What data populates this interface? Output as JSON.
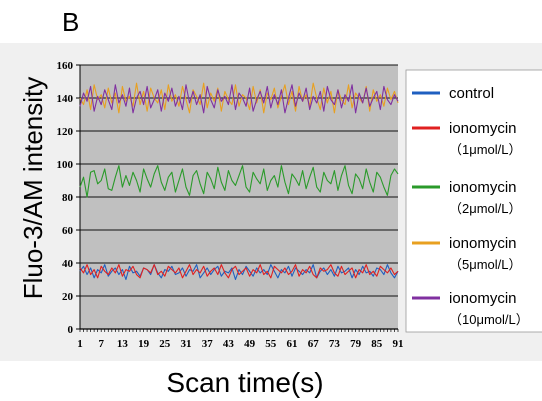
{
  "panel_label": "B",
  "chart_data": {
    "type": "line",
    "xlabel": "Scan time(s)",
    "ylabel": "Fluo-3/AM intensity",
    "x_ticks": [
      "1",
      "7",
      "13",
      "19",
      "25",
      "31",
      "37",
      "43",
      "49",
      "55",
      "61",
      "67",
      "73",
      "79",
      "85",
      "91"
    ],
    "x_range": [
      1,
      91
    ],
    "y_ticks": [
      "0",
      "20",
      "40",
      "60",
      "80",
      "100",
      "120",
      "140",
      "160"
    ],
    "ylim": [
      0,
      160
    ],
    "grid": "horizontal",
    "plot_background": "#c0c0c0",
    "legend_placement": "right",
    "legend": [
      {
        "line1": "control",
        "line2": "",
        "color": "#1f5fc0"
      },
      {
        "line1": "ionomycin",
        "line2": "（1μmol/L）",
        "color": "#e02020"
      },
      {
        "line1": "ionomycin",
        "line2": "（2μmol/L）",
        "color": "#2a9a2a"
      },
      {
        "line1": "ionomycin",
        "line2": "（5μmol/L）",
        "color": "#e8a020"
      },
      {
        "line1": "ionomycin",
        "line2": "（10μmol/L）",
        "color": "#8030a0"
      }
    ],
    "series": [
      {
        "color": "#1f5fc0",
        "values": [
          35,
          38,
          33,
          37,
          31,
          36,
          34,
          39,
          32,
          35,
          37,
          33,
          36,
          30,
          38,
          34,
          35,
          32,
          37,
          36,
          33,
          39,
          34,
          31,
          36,
          35,
          38,
          33,
          34,
          37,
          32,
          36,
          35,
          39,
          31,
          34,
          37,
          33,
          36,
          38,
          32,
          35,
          34,
          37,
          30,
          36,
          33,
          38,
          35,
          32,
          37,
          34,
          36,
          33,
          39,
          35,
          31,
          36,
          34,
          38,
          32,
          37,
          35,
          33,
          36,
          34,
          39,
          31,
          35,
          37,
          33,
          36,
          32,
          38,
          34,
          35,
          37,
          31,
          36,
          33,
          38,
          34,
          35,
          32,
          37,
          36,
          33,
          39,
          34,
          31,
          35
        ]
      },
      {
        "color": "#e02020",
        "values": [
          37,
          34,
          39,
          33,
          36,
          31,
          38,
          35,
          33,
          37,
          34,
          39,
          32,
          36,
          35,
          38,
          33,
          31,
          37,
          36,
          34,
          39,
          33,
          35,
          32,
          38,
          36,
          34,
          37,
          31,
          35,
          39,
          33,
          36,
          34,
          38,
          32,
          35,
          37,
          33,
          39,
          34,
          31,
          36,
          38,
          33,
          35,
          37,
          32,
          36,
          34,
          39,
          33,
          35,
          31,
          38,
          36,
          34,
          37,
          33,
          35,
          39,
          32,
          36,
          34,
          38,
          33,
          31,
          37,
          35,
          36,
          39,
          34,
          32,
          38,
          33,
          35,
          37,
          31,
          36,
          34,
          39,
          33,
          35,
          32,
          38,
          36,
          34,
          37,
          33,
          35
        ]
      },
      {
        "color": "#2a9a2a",
        "values": [
          86,
          92,
          80,
          95,
          96,
          88,
          90,
          97,
          85,
          84,
          92,
          99,
          86,
          93,
          87,
          95,
          90,
          83,
          97,
          91,
          86,
          94,
          99,
          89,
          84,
          92,
          95,
          83,
          90,
          97,
          86,
          81,
          93,
          96,
          88,
          82,
          95,
          91,
          85,
          98,
          89,
          84,
          96,
          90,
          87,
          93,
          99,
          86,
          83,
          95,
          91,
          88,
          97,
          84,
          90,
          93,
          86,
          99,
          89,
          82,
          94,
          91,
          87,
          96,
          85,
          92,
          98,
          86,
          83,
          95,
          90,
          88,
          96,
          84,
          93,
          99,
          87,
          82,
          94,
          91,
          85,
          97,
          89,
          83,
          95,
          92,
          86,
          81,
          93,
          97,
          94
        ]
      },
      {
        "color": "#e8a020",
        "values": [
          140,
          136,
          145,
          133,
          148,
          139,
          142,
          134,
          146,
          137,
          143,
          131,
          147,
          138,
          141,
          135,
          149,
          136,
          144,
          132,
          146,
          140,
          137,
          145,
          133,
          148,
          138,
          142,
          135,
          147,
          139,
          131,
          145,
          141,
          136,
          149,
          134,
          143,
          138,
          146,
          132,
          144,
          139,
          136,
          148,
          135,
          142,
          140,
          133,
          147,
          137,
          145,
          131,
          143,
          139,
          146,
          134,
          141,
          148,
          136,
          144,
          132,
          147,
          138,
          142,
          135,
          149,
          140,
          133,
          146,
          137,
          144,
          131,
          145,
          139,
          136,
          148,
          134,
          143,
          140,
          137,
          147,
          132,
          145,
          138,
          142,
          135,
          146,
          139,
          144,
          137
        ]
      },
      {
        "color": "#8030a0",
        "values": [
          135,
          143,
          138,
          147,
          132,
          141,
          136,
          145,
          139,
          133,
          148,
          137,
          142,
          135,
          146,
          131,
          140,
          144,
          136,
          147,
          134,
          139,
          145,
          132,
          143,
          138,
          146,
          135,
          141,
          133,
          148,
          137,
          144,
          136,
          142,
          131,
          147,
          139,
          134,
          145,
          138,
          141,
          136,
          148,
          133,
          143,
          140,
          135,
          146,
          132,
          139,
          144,
          137,
          147,
          134,
          142,
          136,
          145,
          131,
          140,
          148,
          135,
          143,
          138,
          146,
          133,
          141,
          137,
          144,
          132,
          147,
          139,
          136,
          145,
          134,
          142,
          138,
          148,
          131,
          143,
          137,
          146,
          135,
          140,
          144,
          133,
          147,
          139,
          136,
          142,
          138
        ]
      }
    ]
  }
}
